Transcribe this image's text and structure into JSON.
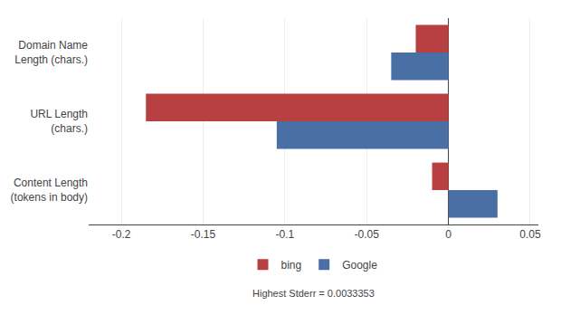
{
  "chart_data": {
    "type": "bar",
    "orientation": "horizontal",
    "categories": [
      "Content Length\n(tokens in body)",
      "URL Length\n(chars.)",
      "Domain Name\nLength (chars.)"
    ],
    "series": [
      {
        "name": "bing",
        "color": "#B94040",
        "values": [
          -0.01,
          -0.185,
          -0.02
        ]
      },
      {
        "name": "Google",
        "color": "#4A6FA5",
        "values": [
          0.03,
          -0.105,
          -0.035
        ]
      }
    ],
    "xlim": [
      -0.22,
      0.055
    ],
    "xticks": [
      -0.2,
      -0.15,
      -0.1,
      -0.05,
      0,
      0.05
    ],
    "grid": true,
    "legend": "bottom",
    "annotations": [
      "Highest Stderr = 0.0033353"
    ]
  }
}
